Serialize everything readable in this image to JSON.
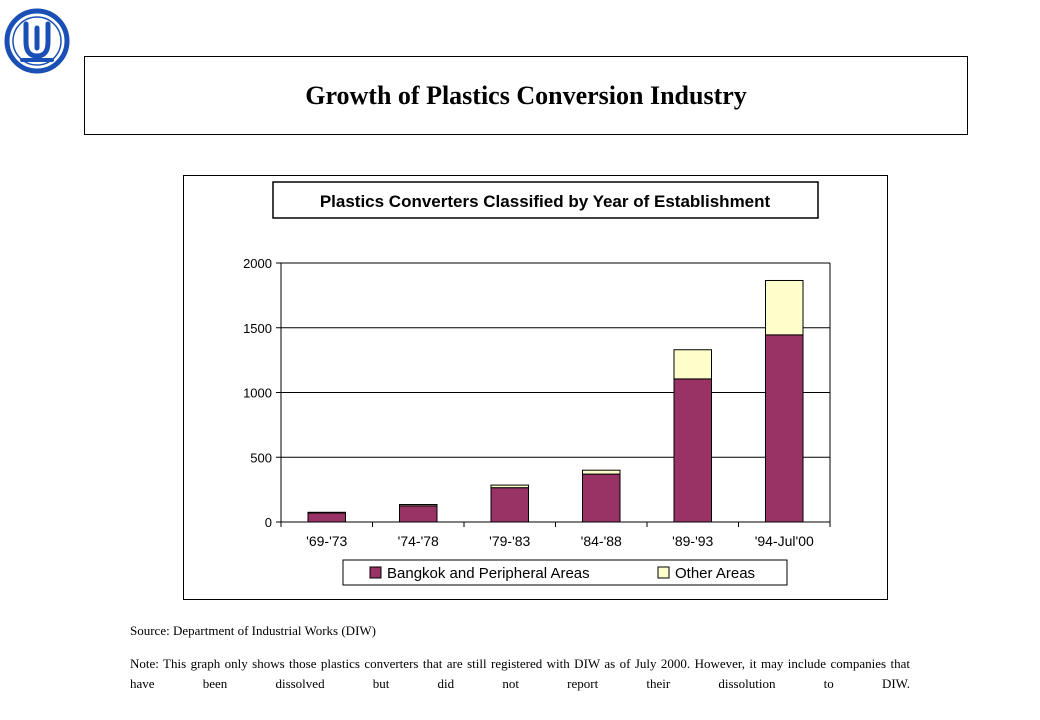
{
  "page": {
    "title": "Growth of Plastics Conversion Industry",
    "source": "Source: Department of Industrial Works (DIW)",
    "note": "Note: This graph only shows those plastics converters that are still registered with DIW as of July 2000. However, it may include companies that have been dissolved but did not report their dissolution to DIW.",
    "logo_icon": "diw-emblem-icon",
    "brand_color": "#1a4fb5"
  },
  "chart_data": {
    "type": "bar",
    "stacked": true,
    "title": "Plastics Converters Classified by Year of Establishment",
    "categories": [
      "'69-'73",
      "'74-'78",
      "'79-'83",
      "'84-'88",
      "'89-'93",
      "'94-Jul'00"
    ],
    "series": [
      {
        "name": "Bangkok and Peripheral Areas",
        "color": "#993366",
        "values": [
          70,
          125,
          265,
          370,
          1105,
          1445
        ]
      },
      {
        "name": "Other Areas",
        "color": "#ffffcc",
        "values": [
          5,
          10,
          20,
          30,
          225,
          420
        ]
      }
    ],
    "ylim": [
      0,
      2000
    ],
    "yticks": [
      0,
      500,
      1000,
      1500,
      2000
    ],
    "xlabel": "",
    "ylabel": "",
    "grid": true,
    "legend_position": "bottom"
  }
}
